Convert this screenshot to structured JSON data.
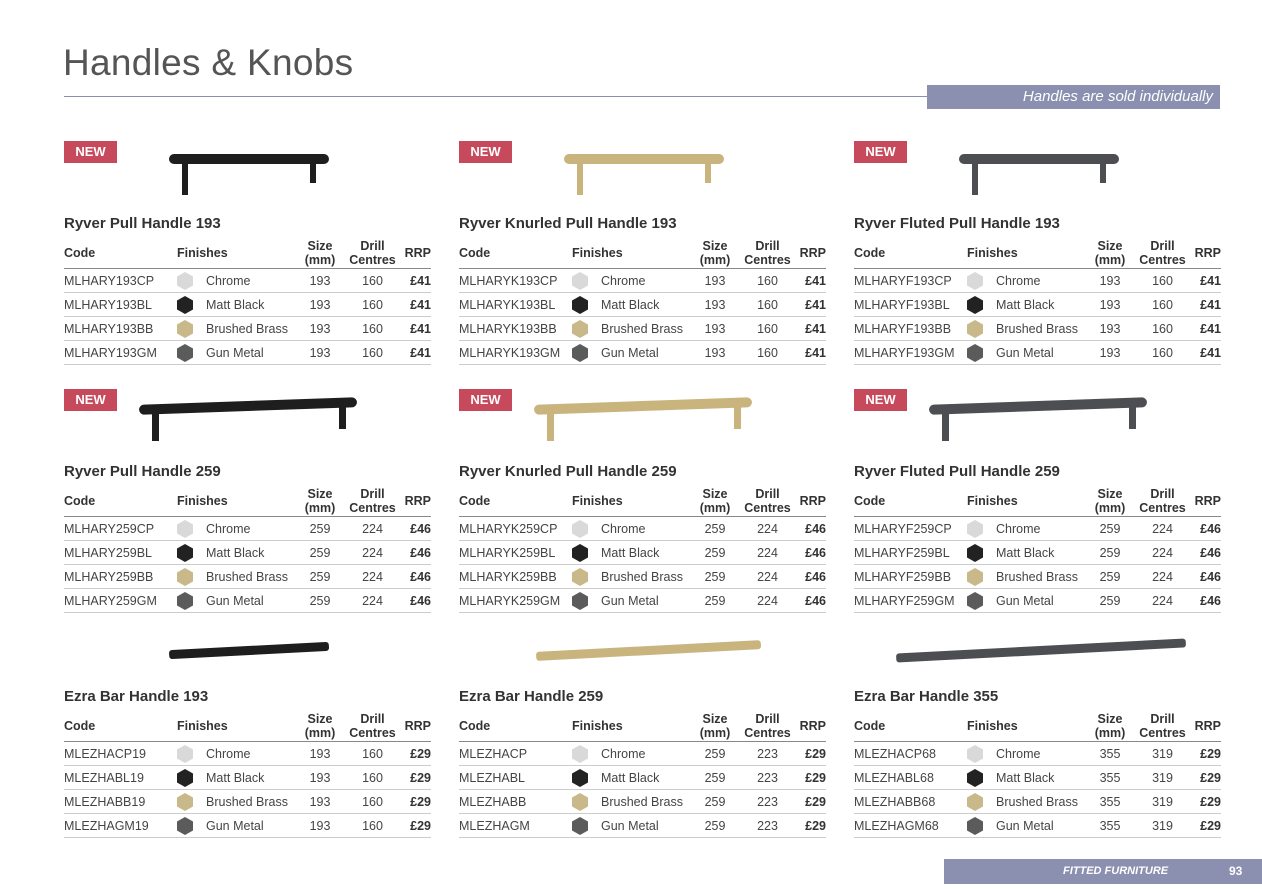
{
  "header": {
    "title": "Handles & Knobs",
    "banner": "Handles are sold individually"
  },
  "table_header": [
    "Code",
    "Finishes",
    "Size (mm)",
    "Drill Centres",
    "RRP"
  ],
  "products": [
    {
      "badge": "NEW",
      "name": "Ryver Pull Handle 193",
      "rows": [
        [
          "MLHARY193CP",
          "Chrome",
          193,
          160,
          "£41"
        ],
        [
          "MLHARY193BL",
          "Matt Black",
          193,
          160,
          "£41"
        ],
        [
          "MLHARY193BB",
          "Brushed Brass",
          193,
          160,
          "£41"
        ],
        [
          "MLHARY193GM",
          "Gun Metal",
          193,
          160,
          "£41"
        ]
      ]
    },
    {
      "badge": "NEW",
      "name": "Ryver Knurled Pull Handle 193",
      "rows": [
        [
          "MLHARYK193CP",
          "Chrome",
          193,
          160,
          "£41"
        ],
        [
          "MLHARYK193BL",
          "Matt Black",
          193,
          160,
          "£41"
        ],
        [
          "MLHARYK193BB",
          "Brushed Brass",
          193,
          160,
          "£41"
        ],
        [
          "MLHARYK193GM",
          "Gun Metal",
          193,
          160,
          "£41"
        ]
      ]
    },
    {
      "badge": "NEW",
      "name": "Ryver Fluted Pull Handle 193",
      "rows": [
        [
          "MLHARYF193CP",
          "Chrome",
          193,
          160,
          "£41"
        ],
        [
          "MLHARYF193BL",
          "Matt Black",
          193,
          160,
          "£41"
        ],
        [
          "MLHARYF193BB",
          "Brushed Brass",
          193,
          160,
          "£41"
        ],
        [
          "MLHARYF193GM",
          "Gun Metal",
          193,
          160,
          "£41"
        ]
      ]
    },
    {
      "badge": "NEW",
      "name": "Ryver Pull Handle 259",
      "rows": [
        [
          "MLHARY259CP",
          "Chrome",
          259,
          224,
          "£46"
        ],
        [
          "MLHARY259BL",
          "Matt Black",
          259,
          224,
          "£46"
        ],
        [
          "MLHARY259BB",
          "Brushed Brass",
          259,
          224,
          "£46"
        ],
        [
          "MLHARY259GM",
          "Gun Metal",
          259,
          224,
          "£46"
        ]
      ]
    },
    {
      "badge": "NEW",
      "name": "Ryver Knurled Pull Handle 259",
      "rows": [
        [
          "MLHARYK259CP",
          "Chrome",
          259,
          224,
          "£46"
        ],
        [
          "MLHARYK259BL",
          "Matt Black",
          259,
          224,
          "£46"
        ],
        [
          "MLHARYK259BB",
          "Brushed Brass",
          259,
          224,
          "£46"
        ],
        [
          "MLHARYK259GM",
          "Gun Metal",
          259,
          224,
          "£46"
        ]
      ]
    },
    {
      "badge": "NEW",
      "name": "Ryver Fluted Pull Handle 259",
      "rows": [
        [
          "MLHARYF259CP",
          "Chrome",
          259,
          224,
          "£46"
        ],
        [
          "MLHARYF259BL",
          "Matt Black",
          259,
          224,
          "£46"
        ],
        [
          "MLHARYF259BB",
          "Brushed Brass",
          259,
          224,
          "£46"
        ],
        [
          "MLHARYF259GM",
          "Gun Metal",
          259,
          224,
          "£46"
        ]
      ]
    },
    {
      "name": "Ezra Bar Handle 193",
      "rows": [
        [
          "MLEZHACP19",
          "Chrome",
          193,
          160,
          "£29"
        ],
        [
          "MLEZHABL19",
          "Matt Black",
          193,
          160,
          "£29"
        ],
        [
          "MLEZHABB19",
          "Brushed Brass",
          193,
          160,
          "£29"
        ],
        [
          "MLEZHAGM19",
          "Gun Metal",
          193,
          160,
          "£29"
        ]
      ]
    },
    {
      "name": "Ezra Bar Handle 259",
      "rows": [
        [
          "MLEZHACP",
          "Chrome",
          259,
          223,
          "£29"
        ],
        [
          "MLEZHABL",
          "Matt Black",
          259,
          223,
          "£29"
        ],
        [
          "MLEZHABB",
          "Brushed Brass",
          259,
          223,
          "£29"
        ],
        [
          "MLEZHAGM",
          "Gun Metal",
          259,
          223,
          "£29"
        ]
      ]
    },
    {
      "name": "Ezra Bar Handle 355",
      "rows": [
        [
          "MLEZHACP68",
          "Chrome",
          355,
          319,
          "£29"
        ],
        [
          "MLEZHABL68",
          "Matt Black",
          355,
          319,
          "£29"
        ],
        [
          "MLEZHABB68",
          "Brushed Brass",
          355,
          319,
          "£29"
        ],
        [
          "MLEZHAGM68",
          "Gun Metal",
          355,
          319,
          "£29"
        ]
      ]
    }
  ],
  "footer": {
    "section": "FITTED FURNITURE",
    "page": "93"
  }
}
